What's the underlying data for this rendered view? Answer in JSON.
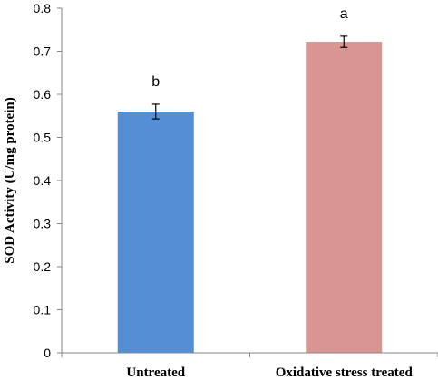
{
  "chart_data": {
    "type": "bar",
    "title": "",
    "xlabel": "",
    "ylabel": "SOD Activity (U/mg protein)",
    "ylim": [
      0,
      0.8
    ],
    "yticks": [
      0,
      0.1,
      0.2,
      0.3,
      0.4,
      0.5,
      0.6,
      0.7,
      0.8
    ],
    "ytick_labels": [
      "0",
      "0.1",
      "0.2",
      "0.3",
      "0.4",
      "0.5",
      "0.6",
      "0.7",
      "0.8"
    ],
    "grid": false,
    "legend": "none",
    "categories": [
      "Untreated",
      "Oxidative stress treated"
    ],
    "values": [
      0.56,
      0.722
    ],
    "errors": [
      0.017,
      0.013
    ],
    "significance_labels": [
      "b",
      "a"
    ],
    "colors": [
      "#558ED5",
      "#D99594"
    ]
  }
}
